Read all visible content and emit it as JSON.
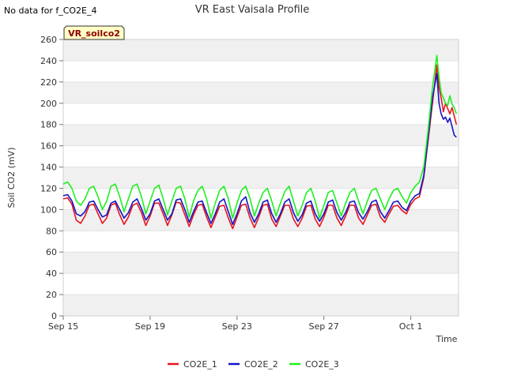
{
  "no_data_note": "No data for f_CO2E_4",
  "chart_data": {
    "type": "line",
    "title": "VR East Vaisala Profile",
    "site_badge": "VR_soilco2",
    "xlabel": "Time",
    "ylabel": "Soil CO2 (mV)",
    "xlim": [
      0,
      18.2
    ],
    "ylim": [
      0,
      260
    ],
    "yticks": [
      0,
      20,
      40,
      60,
      80,
      100,
      120,
      140,
      160,
      180,
      200,
      220,
      240,
      260
    ],
    "xticks": [
      {
        "value": 0,
        "label": "Sep 15"
      },
      {
        "value": 4,
        "label": "Sep 19"
      },
      {
        "value": 8,
        "label": "Sep 23"
      },
      {
        "value": 12,
        "label": "Sep 27"
      },
      {
        "value": 16,
        "label": "Oct 1"
      }
    ],
    "grid": true,
    "legend_position": "bottom-center",
    "series": [
      {
        "name": "CO2E_1",
        "color": "#e8141b",
        "x": [
          0,
          0.2,
          0.4,
          0.6,
          0.8,
          1.0,
          1.2,
          1.4,
          1.6,
          1.8,
          2.0,
          2.2,
          2.4,
          2.6,
          2.8,
          3.0,
          3.2,
          3.4,
          3.6,
          3.8,
          4.0,
          4.2,
          4.4,
          4.6,
          4.8,
          5.0,
          5.2,
          5.4,
          5.6,
          5.8,
          6.0,
          6.2,
          6.4,
          6.6,
          6.8,
          7.0,
          7.2,
          7.4,
          7.6,
          7.8,
          8.0,
          8.2,
          8.4,
          8.6,
          8.8,
          9.0,
          9.2,
          9.4,
          9.6,
          9.8,
          10.0,
          10.2,
          10.4,
          10.6,
          10.8,
          11.0,
          11.2,
          11.4,
          11.6,
          11.8,
          12.0,
          12.2,
          12.4,
          12.6,
          12.8,
          13.0,
          13.2,
          13.4,
          13.6,
          13.8,
          14.0,
          14.2,
          14.4,
          14.6,
          14.8,
          15.0,
          15.2,
          15.4,
          15.6,
          15.8,
          16.0,
          16.2,
          16.4,
          16.6,
          16.8,
          17.0,
          17.2,
          17.3,
          17.4,
          17.5,
          17.6,
          17.7,
          17.8,
          17.9,
          18.0,
          18.1
        ],
        "y": [
          110,
          111,
          105,
          90,
          87,
          94,
          104,
          105,
          96,
          87,
          92,
          104,
          106,
          95,
          86,
          93,
          104,
          106,
          97,
          85,
          94,
          106,
          106,
          96,
          85,
          95,
          107,
          106,
          95,
          84,
          95,
          104,
          105,
          93,
          83,
          93,
          103,
          104,
          92,
          82,
          93,
          104,
          105,
          92,
          83,
          93,
          104,
          105,
          91,
          84,
          94,
          104,
          104,
          91,
          84,
          92,
          103,
          104,
          91,
          84,
          93,
          104,
          104,
          92,
          85,
          94,
          104,
          104,
          92,
          86,
          95,
          104,
          105,
          93,
          88,
          96,
          103,
          104,
          99,
          96,
          105,
          110,
          112,
          130,
          165,
          200,
          236,
          215,
          205,
          192,
          200,
          195,
          190,
          196,
          188,
          180
        ]
      },
      {
        "name": "CO2E_2",
        "color": "#1414c8",
        "x": [
          0,
          0.2,
          0.4,
          0.6,
          0.8,
          1.0,
          1.2,
          1.4,
          1.6,
          1.8,
          2.0,
          2.2,
          2.4,
          2.6,
          2.8,
          3.0,
          3.2,
          3.4,
          3.6,
          3.8,
          4.0,
          4.2,
          4.4,
          4.6,
          4.8,
          5.0,
          5.2,
          5.4,
          5.6,
          5.8,
          6.0,
          6.2,
          6.4,
          6.6,
          6.8,
          7.0,
          7.2,
          7.4,
          7.6,
          7.8,
          8.0,
          8.2,
          8.4,
          8.6,
          8.8,
          9.0,
          9.2,
          9.4,
          9.6,
          9.8,
          10.0,
          10.2,
          10.4,
          10.6,
          10.8,
          11.0,
          11.2,
          11.4,
          11.6,
          11.8,
          12.0,
          12.2,
          12.4,
          12.6,
          12.8,
          13.0,
          13.2,
          13.4,
          13.6,
          13.8,
          14.0,
          14.2,
          14.4,
          14.6,
          14.8,
          15.0,
          15.2,
          15.4,
          15.6,
          15.8,
          16.0,
          16.2,
          16.4,
          16.6,
          16.8,
          17.0,
          17.2,
          17.3,
          17.4,
          17.5,
          17.6,
          17.7,
          17.8,
          17.9,
          18.0,
          18.1
        ],
        "y": [
          113,
          114,
          108,
          96,
          94,
          98,
          107,
          108,
          100,
          93,
          95,
          106,
          108,
          100,
          92,
          97,
          107,
          110,
          101,
          90,
          96,
          108,
          110,
          100,
          90,
          96,
          109,
          110,
          100,
          88,
          98,
          107,
          108,
          97,
          87,
          96,
          107,
          110,
          98,
          86,
          96,
          108,
          112,
          97,
          88,
          96,
          107,
          109,
          96,
          88,
          96,
          107,
          110,
          97,
          89,
          95,
          106,
          108,
          96,
          89,
          96,
          107,
          109,
          97,
          90,
          97,
          107,
          108,
          97,
          91,
          98,
          107,
          109,
          98,
          92,
          99,
          107,
          108,
          102,
          99,
          108,
          113,
          115,
          132,
          168,
          205,
          228,
          200,
          190,
          185,
          187,
          182,
          186,
          178,
          170,
          168
        ]
      },
      {
        "name": "CO2E_3",
        "color": "#1ef01e",
        "x": [
          0,
          0.2,
          0.4,
          0.6,
          0.8,
          1.0,
          1.2,
          1.4,
          1.6,
          1.8,
          2.0,
          2.2,
          2.4,
          2.6,
          2.8,
          3.0,
          3.2,
          3.4,
          3.6,
          3.8,
          4.0,
          4.2,
          4.4,
          4.6,
          4.8,
          5.0,
          5.2,
          5.4,
          5.6,
          5.8,
          6.0,
          6.2,
          6.4,
          6.6,
          6.8,
          7.0,
          7.2,
          7.4,
          7.6,
          7.8,
          8.0,
          8.2,
          8.4,
          8.6,
          8.8,
          9.0,
          9.2,
          9.4,
          9.6,
          9.8,
          10.0,
          10.2,
          10.4,
          10.6,
          10.8,
          11.0,
          11.2,
          11.4,
          11.6,
          11.8,
          12.0,
          12.2,
          12.4,
          12.6,
          12.8,
          13.0,
          13.2,
          13.4,
          13.6,
          13.8,
          14.0,
          14.2,
          14.4,
          14.6,
          14.8,
          15.0,
          15.2,
          15.4,
          15.6,
          15.8,
          16.0,
          16.2,
          16.4,
          16.6,
          16.8,
          17.0,
          17.2,
          17.3,
          17.4,
          17.5,
          17.6,
          17.7,
          17.8,
          17.9,
          18.0,
          18.1
        ],
        "y": [
          124,
          126,
          120,
          108,
          104,
          110,
          120,
          122,
          112,
          100,
          108,
          122,
          124,
          112,
          98,
          110,
          122,
          124,
          112,
          96,
          108,
          120,
          123,
          110,
          95,
          108,
          120,
          122,
          110,
          93,
          108,
          118,
          122,
          110,
          92,
          106,
          118,
          122,
          110,
          92,
          106,
          118,
          122,
          110,
          94,
          106,
          116,
          120,
          108,
          94,
          106,
          117,
          122,
          108,
          94,
          104,
          116,
          120,
          108,
          92,
          104,
          116,
          118,
          106,
          94,
          106,
          116,
          120,
          108,
          96,
          108,
          118,
          120,
          110,
          100,
          110,
          118,
          120,
          112,
          106,
          116,
          122,
          126,
          140,
          175,
          215,
          245,
          225,
          210,
          205,
          200,
          198,
          207,
          199,
          196,
          190
        ]
      }
    ]
  }
}
